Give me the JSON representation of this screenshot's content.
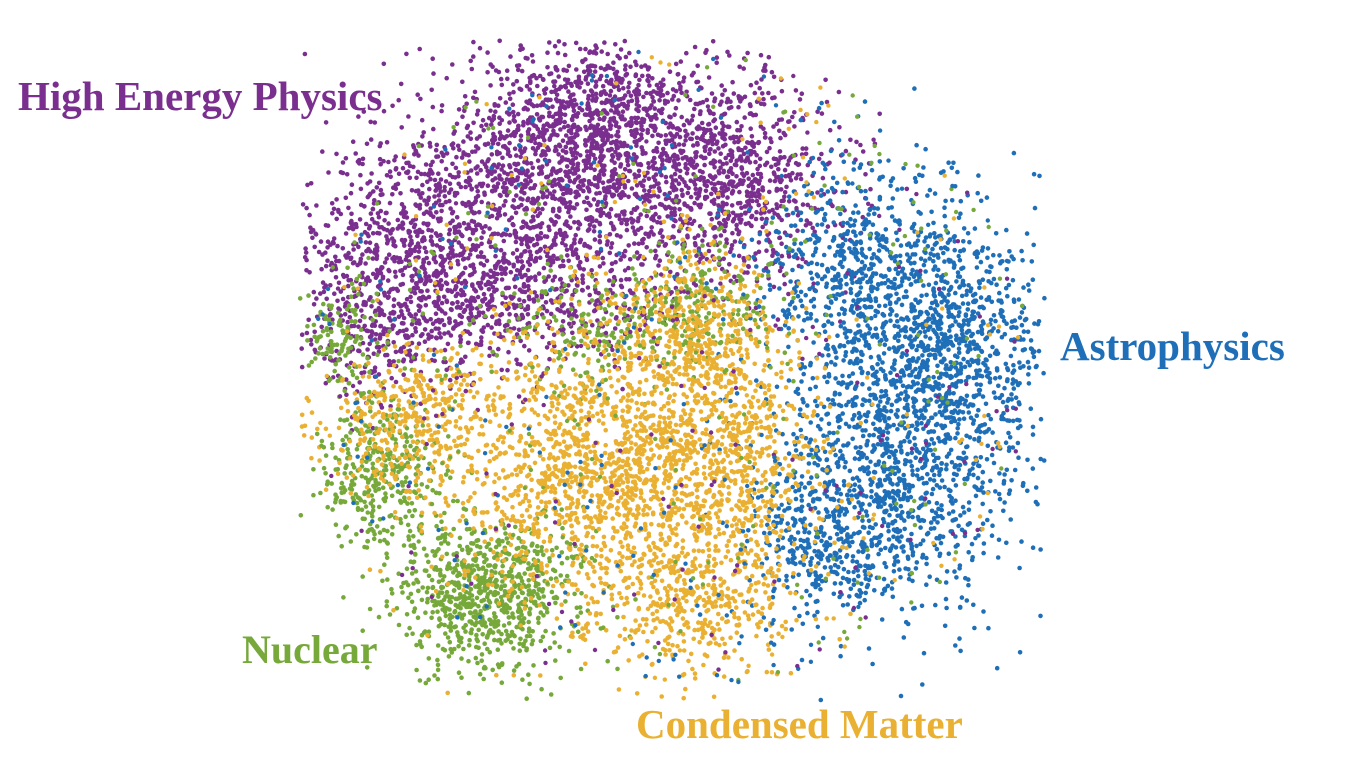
{
  "chart_data": {
    "type": "scatter",
    "title": "",
    "xlabel": "",
    "ylabel": "",
    "grid": false,
    "series": [
      {
        "name": "High Energy Physics",
        "color": "#7a2f8f"
      },
      {
        "name": "Astrophysics",
        "color": "#1f6fb8"
      },
      {
        "name": "Nuclear",
        "color": "#76a93a"
      },
      {
        "name": "Condensed Matter",
        "color": "#eab032"
      }
    ]
  }
}
